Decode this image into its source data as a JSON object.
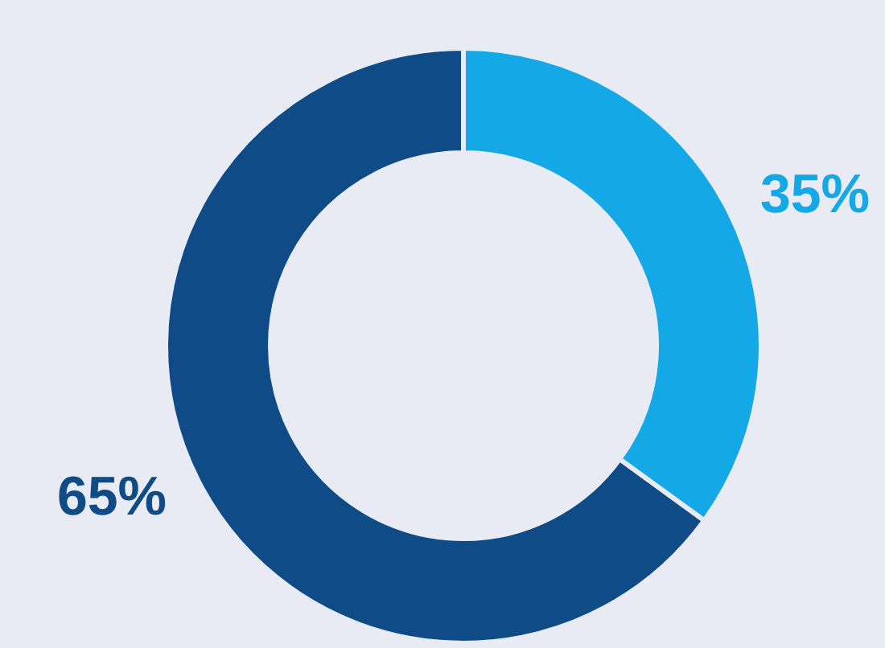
{
  "chart_data": {
    "type": "donut",
    "categories": [
      null,
      null
    ],
    "values": [
      35,
      65
    ],
    "colors": [
      "#14a8e6",
      "#0e4b87"
    ],
    "value_labels": [
      "35%",
      "65%"
    ]
  }
}
